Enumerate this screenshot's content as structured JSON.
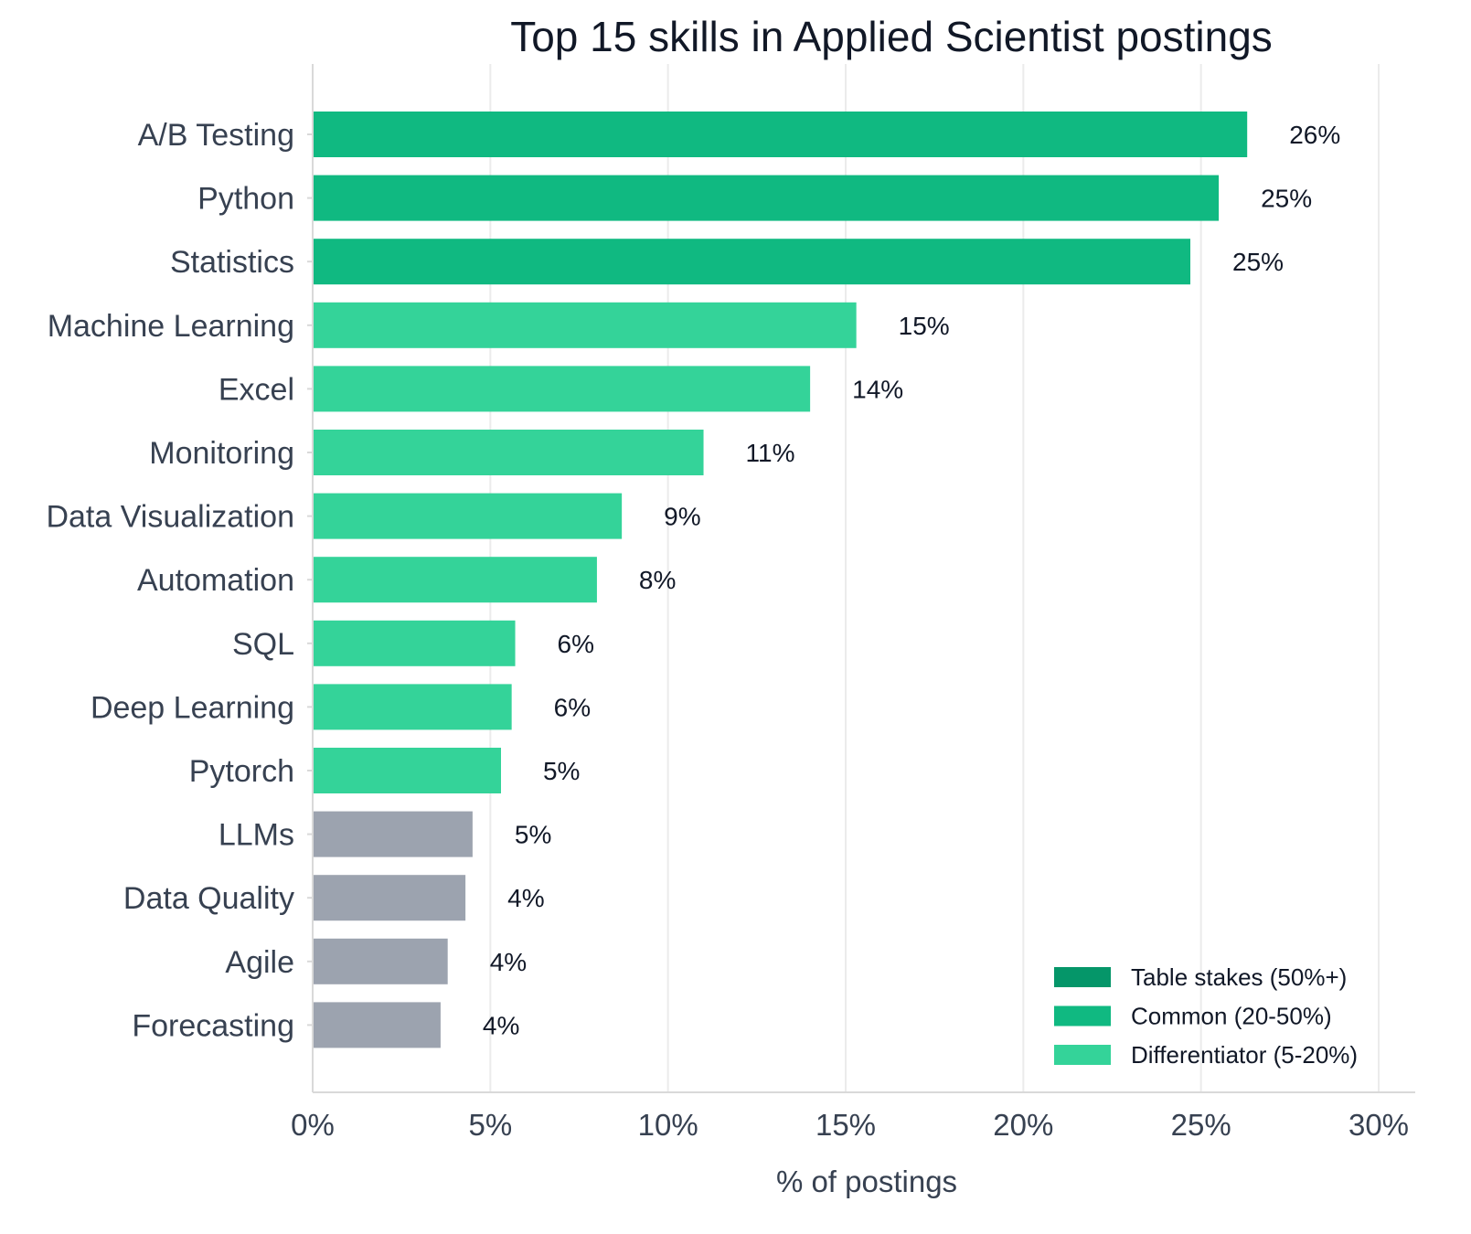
{
  "chart_data": {
    "type": "bar",
    "orientation": "horizontal",
    "title": "Top 15 skills in Applied Scientist postings",
    "xlabel": "% of postings",
    "ylabel": "",
    "xlim": [
      0,
      30
    ],
    "xticks": [
      0,
      5,
      10,
      15,
      20,
      25,
      30
    ],
    "xtick_labels": [
      "0%",
      "5%",
      "10%",
      "15%",
      "20%",
      "25%",
      "30%"
    ],
    "grid": "vertical",
    "legend_position": "bottom-right",
    "categories": [
      "A/B Testing",
      "Python",
      "Statistics",
      "Machine Learning",
      "Excel",
      "Monitoring",
      "Data Visualization",
      "Automation",
      "SQL",
      "Deep Learning",
      "Pytorch",
      "LLMs",
      "Data Quality",
      "Agile",
      "Forecasting"
    ],
    "values": [
      26.3,
      25.5,
      24.7,
      15.3,
      14.0,
      11.0,
      8.7,
      8.0,
      5.7,
      5.6,
      5.3,
      4.5,
      4.3,
      3.8,
      3.6
    ],
    "value_labels": [
      "26%",
      "25%",
      "25%",
      "15%",
      "14%",
      "11%",
      "9%",
      "8%",
      "6%",
      "6%",
      "5%",
      "5%",
      "4%",
      "4%",
      "4%"
    ],
    "bar_tiers": [
      "common",
      "common",
      "common",
      "differentiator",
      "differentiator",
      "differentiator",
      "differentiator",
      "differentiator",
      "differentiator",
      "differentiator",
      "differentiator",
      "other",
      "other",
      "other",
      "other"
    ],
    "tier_colors": {
      "table_stakes": "#059669",
      "common": "#10b981",
      "differentiator": "#34d399",
      "other": "#9ca3af"
    },
    "legend": [
      {
        "label": "Table stakes (50%+)",
        "tier": "table_stakes"
      },
      {
        "label": "Common (20-50%)",
        "tier": "common"
      },
      {
        "label": "Differentiator (5-20%)",
        "tier": "differentiator"
      }
    ],
    "colors": {
      "grid": "#ebebeb",
      "axis": "#d9d9d9",
      "text": "#374151"
    }
  }
}
